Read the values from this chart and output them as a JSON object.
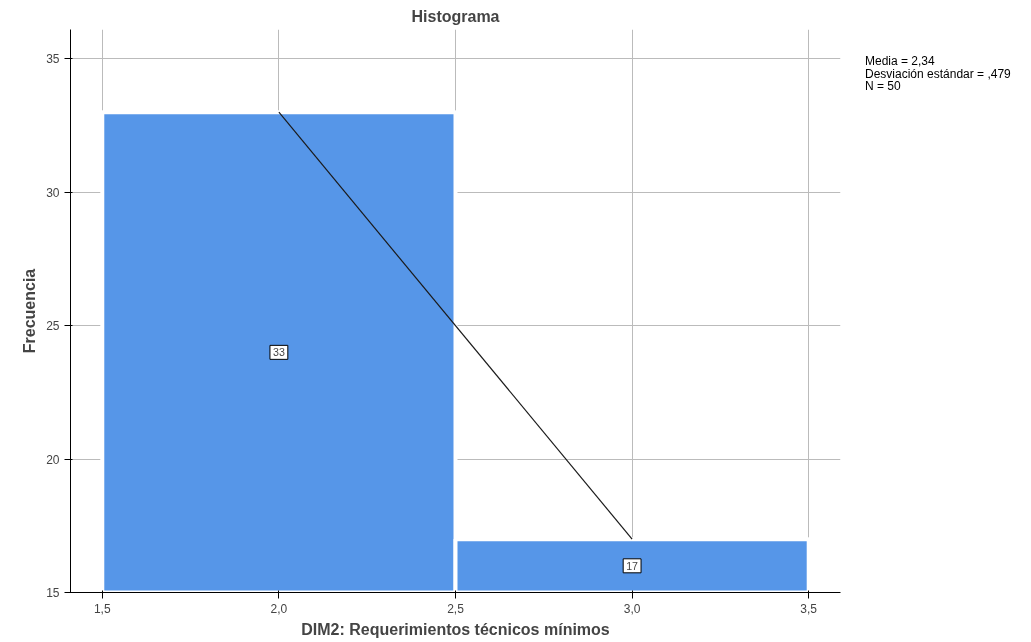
{
  "chart_data": {
    "type": "histogram",
    "title": "Histograma",
    "xlabel": "DIM2: Requerimientos técnicos mínimos",
    "ylabel": "Frecuencia",
    "bins": [
      1.5,
      2.5,
      3.5
    ],
    "values": [
      33,
      17
    ],
    "color": "#5696e8",
    "value_labels": [
      "33",
      "17"
    ],
    "series": [
      {
        "type": "line",
        "x": [
          2,
          3
        ],
        "values": [
          33,
          17
        ],
        "color": "#1a1a1a"
      }
    ],
    "xlim": [
      1.41,
      3.59
    ],
    "ylim": [
      15,
      36.1
    ],
    "xticks": [
      {
        "value": 1.5,
        "label": "1,5"
      },
      {
        "value": 2.0,
        "label": "2,0"
      },
      {
        "value": 2.5,
        "label": "2,5"
      },
      {
        "value": 3.0,
        "label": "3,0"
      },
      {
        "value": 3.5,
        "label": "3,5"
      }
    ],
    "yticks": [
      15,
      20,
      25,
      30,
      35
    ],
    "grid": true,
    "annotations": [
      "Media = 2,34",
      "Desviación estándar = ,479",
      "N = 50"
    ]
  }
}
